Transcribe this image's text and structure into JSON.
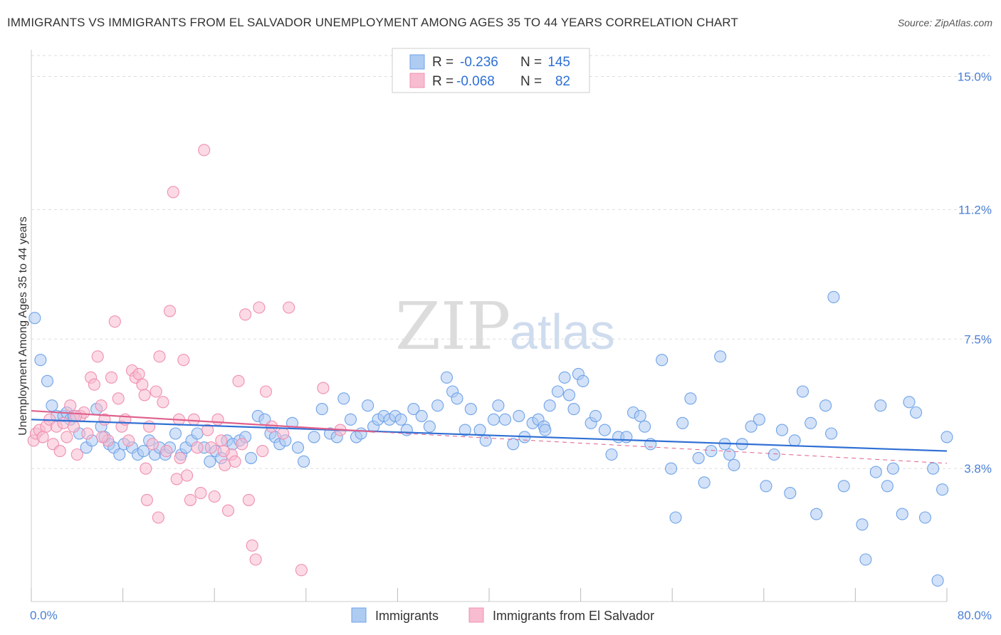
{
  "header": {
    "title": "IMMIGRANTS VS IMMIGRANTS FROM EL SALVADOR UNEMPLOYMENT AMONG AGES 35 TO 44 YEARS CORRELATION CHART",
    "source": "Source: ZipAtlas.com"
  },
  "watermark": {
    "zip": "ZIP",
    "atlas": "atlas"
  },
  "legend_top": {
    "rows": [
      {
        "r_label": "R = ",
        "r_value": "-0.236",
        "n_label": "N = ",
        "n_value": "145"
      },
      {
        "r_label": "R = ",
        "r_value": "-0.068",
        "n_label": "N = ",
        "n_value": "82"
      }
    ]
  },
  "colors": {
    "blue": "#6fa3e8",
    "blue_fill": "#aecbf2",
    "blue_line": "#2e6fd4",
    "pink": "#f08fb0",
    "pink_fill": "#f7bcd0",
    "pink_line": "#e0608c",
    "grid": "#dddddd",
    "tick_text": "#4a7fd4"
  },
  "chart_data": {
    "type": "scatter",
    "title": "IMMIGRANTS VS IMMIGRANTS FROM EL SALVADOR UNEMPLOYMENT AMONG AGES 35 TO 44 YEARS CORRELATION CHART",
    "xlabel": "",
    "ylabel": "Unemployment Among Ages 35 to 44 years",
    "xlim": [
      0,
      80
    ],
    "ylim": [
      0,
      15.6
    ],
    "x_tick_labels": [
      "0.0%",
      "80.0%"
    ],
    "y_ticks": [
      3.8,
      7.5,
      11.2,
      15.0
    ],
    "y_tick_labels": [
      "3.8%",
      "7.5%",
      "11.2%",
      "15.0%"
    ],
    "grid": true,
    "legend_position": "top-center",
    "series": [
      {
        "name": "Immigrants",
        "r": -0.236,
        "n": 145,
        "trend": {
          "x": [
            0,
            80
          ],
          "y": [
            5.2,
            4.3
          ]
        },
        "points": [
          [
            0.3,
            8.1
          ],
          [
            0.8,
            6.9
          ],
          [
            1.4,
            6.3
          ],
          [
            1.8,
            5.6
          ],
          [
            2.2,
            5.3
          ],
          [
            2.8,
            5.3
          ],
          [
            3.1,
            5.4
          ],
          [
            3.4,
            5.2
          ],
          [
            3.7,
            5.3
          ],
          [
            4.2,
            4.8
          ],
          [
            4.8,
            4.4
          ],
          [
            5.3,
            4.6
          ],
          [
            5.7,
            5.5
          ],
          [
            6.1,
            5.0
          ],
          [
            6.4,
            4.7
          ],
          [
            6.8,
            4.5
          ],
          [
            7.2,
            4.4
          ],
          [
            7.7,
            4.2
          ],
          [
            8.1,
            4.5
          ],
          [
            8.8,
            4.4
          ],
          [
            9.3,
            4.2
          ],
          [
            9.8,
            4.3
          ],
          [
            10.3,
            4.6
          ],
          [
            10.8,
            4.2
          ],
          [
            11.2,
            4.4
          ],
          [
            11.7,
            4.2
          ],
          [
            12.1,
            4.4
          ],
          [
            12.6,
            4.8
          ],
          [
            13.1,
            4.2
          ],
          [
            13.5,
            4.4
          ],
          [
            14.0,
            4.6
          ],
          [
            14.5,
            4.8
          ],
          [
            15.1,
            4.4
          ],
          [
            15.6,
            4.0
          ],
          [
            16.1,
            4.3
          ],
          [
            16.6,
            4.1
          ],
          [
            17.1,
            4.6
          ],
          [
            17.6,
            4.5
          ],
          [
            18.2,
            4.6
          ],
          [
            18.7,
            4.7
          ],
          [
            19.2,
            4.1
          ],
          [
            19.8,
            5.3
          ],
          [
            20.4,
            5.2
          ],
          [
            20.9,
            4.8
          ],
          [
            21.3,
            4.7
          ],
          [
            21.7,
            4.5
          ],
          [
            22.2,
            4.6
          ],
          [
            22.8,
            5.1
          ],
          [
            23.3,
            4.4
          ],
          [
            23.8,
            4.0
          ],
          [
            24.7,
            4.7
          ],
          [
            25.4,
            5.5
          ],
          [
            26.1,
            4.8
          ],
          [
            26.7,
            4.7
          ],
          [
            27.3,
            5.8
          ],
          [
            27.9,
            5.2
          ],
          [
            28.4,
            4.7
          ],
          [
            28.8,
            4.8
          ],
          [
            29.4,
            5.6
          ],
          [
            29.9,
            5.0
          ],
          [
            30.3,
            5.2
          ],
          [
            30.8,
            5.3
          ],
          [
            31.3,
            5.2
          ],
          [
            31.8,
            5.3
          ],
          [
            32.3,
            5.2
          ],
          [
            32.8,
            4.9
          ],
          [
            33.4,
            5.5
          ],
          [
            34.1,
            5.3
          ],
          [
            34.8,
            5.0
          ],
          [
            35.5,
            5.6
          ],
          [
            36.3,
            6.4
          ],
          [
            36.8,
            6.0
          ],
          [
            37.2,
            5.8
          ],
          [
            37.9,
            4.9
          ],
          [
            38.4,
            5.5
          ],
          [
            39.2,
            4.9
          ],
          [
            39.7,
            4.6
          ],
          [
            40.4,
            5.2
          ],
          [
            40.8,
            5.6
          ],
          [
            41.4,
            5.2
          ],
          [
            42.1,
            4.5
          ],
          [
            42.6,
            5.3
          ],
          [
            43.1,
            4.7
          ],
          [
            43.8,
            5.1
          ],
          [
            44.3,
            5.2
          ],
          [
            44.8,
            5.0
          ],
          [
            45.3,
            5.6
          ],
          [
            46.0,
            6.0
          ],
          [
            46.6,
            6.4
          ],
          [
            47.0,
            5.9
          ],
          [
            47.4,
            5.5
          ],
          [
            47.8,
            6.5
          ],
          [
            48.2,
            6.3
          ],
          [
            48.9,
            5.1
          ],
          [
            49.3,
            5.3
          ],
          [
            50.1,
            4.9
          ],
          [
            50.7,
            4.2
          ],
          [
            51.3,
            4.7
          ],
          [
            52.0,
            4.7
          ],
          [
            52.6,
            5.4
          ],
          [
            53.2,
            5.3
          ],
          [
            53.6,
            5.0
          ],
          [
            54.1,
            4.5
          ],
          [
            55.1,
            6.9
          ],
          [
            55.9,
            3.8
          ],
          [
            56.3,
            2.4
          ],
          [
            56.9,
            5.1
          ],
          [
            57.6,
            5.8
          ],
          [
            58.3,
            4.1
          ],
          [
            58.8,
            3.4
          ],
          [
            59.4,
            4.3
          ],
          [
            60.2,
            7.0
          ],
          [
            60.6,
            4.5
          ],
          [
            61.4,
            3.9
          ],
          [
            62.1,
            4.5
          ],
          [
            62.9,
            5.0
          ],
          [
            63.6,
            5.2
          ],
          [
            64.2,
            3.3
          ],
          [
            64.9,
            4.2
          ],
          [
            65.6,
            4.9
          ],
          [
            66.3,
            3.1
          ],
          [
            66.7,
            4.6
          ],
          [
            67.4,
            6.0
          ],
          [
            68.1,
            5.1
          ],
          [
            68.6,
            2.5
          ],
          [
            69.4,
            5.6
          ],
          [
            69.9,
            4.8
          ],
          [
            70.1,
            8.7
          ],
          [
            71.0,
            3.3
          ],
          [
            72.6,
            2.2
          ],
          [
            72.9,
            1.2
          ],
          [
            73.8,
            3.7
          ],
          [
            74.2,
            5.6
          ],
          [
            74.8,
            3.3
          ],
          [
            75.3,
            3.8
          ],
          [
            76.1,
            2.5
          ],
          [
            76.7,
            5.7
          ],
          [
            77.3,
            5.4
          ],
          [
            78.1,
            2.4
          ],
          [
            78.8,
            3.8
          ],
          [
            79.2,
            0.6
          ],
          [
            79.6,
            3.2
          ],
          [
            80.0,
            4.7
          ],
          [
            61.0,
            4.2
          ],
          [
            44.9,
            4.9
          ]
        ]
      },
      {
        "name": "Immigrants from El Salvador",
        "r": -0.068,
        "n": 82,
        "trend": {
          "x": [
            0,
            30
          ],
          "y": [
            5.45,
            4.85
          ]
        },
        "trend_extension": {
          "x": [
            30,
            80
          ],
          "y": [
            4.85,
            3.95
          ]
        },
        "points": [
          [
            0.2,
            4.6
          ],
          [
            0.4,
            4.8
          ],
          [
            0.7,
            4.9
          ],
          [
            1.0,
            4.7
          ],
          [
            1.3,
            5.0
          ],
          [
            1.6,
            5.2
          ],
          [
            1.9,
            4.5
          ],
          [
            2.2,
            5.0
          ],
          [
            2.5,
            4.3
          ],
          [
            2.8,
            5.1
          ],
          [
            3.1,
            4.7
          ],
          [
            3.4,
            5.6
          ],
          [
            3.7,
            5.0
          ],
          [
            4.0,
            4.2
          ],
          [
            4.3,
            5.3
          ],
          [
            4.6,
            5.4
          ],
          [
            4.9,
            4.8
          ],
          [
            5.2,
            6.4
          ],
          [
            5.5,
            6.2
          ],
          [
            5.8,
            7.0
          ],
          [
            6.1,
            5.6
          ],
          [
            6.4,
            5.2
          ],
          [
            6.7,
            4.6
          ],
          [
            7.0,
            6.4
          ],
          [
            7.3,
            8.0
          ],
          [
            7.6,
            5.8
          ],
          [
            7.9,
            5.0
          ],
          [
            8.2,
            5.2
          ],
          [
            8.5,
            4.6
          ],
          [
            8.8,
            6.6
          ],
          [
            9.1,
            6.4
          ],
          [
            9.4,
            6.5
          ],
          [
            9.7,
            6.2
          ],
          [
            10.0,
            3.8
          ],
          [
            10.3,
            5.0
          ],
          [
            10.6,
            4.5
          ],
          [
            10.9,
            6.0
          ],
          [
            11.2,
            7.0
          ],
          [
            11.5,
            5.7
          ],
          [
            11.8,
            4.3
          ],
          [
            12.1,
            8.3
          ],
          [
            12.4,
            11.7
          ],
          [
            12.7,
            3.5
          ],
          [
            13.0,
            4.1
          ],
          [
            13.3,
            6.9
          ],
          [
            13.6,
            3.6
          ],
          [
            13.9,
            2.9
          ],
          [
            14.2,
            5.2
          ],
          [
            14.5,
            4.4
          ],
          [
            14.8,
            3.1
          ],
          [
            15.1,
            12.9
          ],
          [
            15.4,
            4.9
          ],
          [
            15.7,
            4.4
          ],
          [
            16.0,
            3.0
          ],
          [
            16.3,
            5.2
          ],
          [
            16.6,
            4.6
          ],
          [
            16.9,
            3.9
          ],
          [
            17.2,
            2.6
          ],
          [
            17.5,
            4.2
          ],
          [
            17.8,
            4.0
          ],
          [
            18.1,
            6.3
          ],
          [
            18.4,
            4.5
          ],
          [
            18.7,
            8.2
          ],
          [
            19.0,
            2.9
          ],
          [
            19.3,
            1.6
          ],
          [
            19.6,
            1.2
          ],
          [
            19.9,
            8.4
          ],
          [
            20.2,
            4.3
          ],
          [
            20.5,
            6.0
          ],
          [
            21.0,
            5.0
          ],
          [
            22.0,
            4.8
          ],
          [
            22.5,
            8.4
          ],
          [
            23.6,
            0.9
          ],
          [
            25.5,
            6.1
          ],
          [
            27.0,
            4.9
          ],
          [
            11.1,
            2.4
          ],
          [
            10.1,
            2.9
          ],
          [
            6.2,
            4.7
          ],
          [
            3.9,
            5.3
          ],
          [
            12.9,
            5.2
          ],
          [
            9.9,
            5.9
          ],
          [
            16.8,
            4.3
          ]
        ]
      }
    ]
  },
  "bottom_legend": {
    "items": [
      {
        "label": "Immigrants"
      },
      {
        "label": "Immigrants from El Salvador"
      }
    ]
  }
}
